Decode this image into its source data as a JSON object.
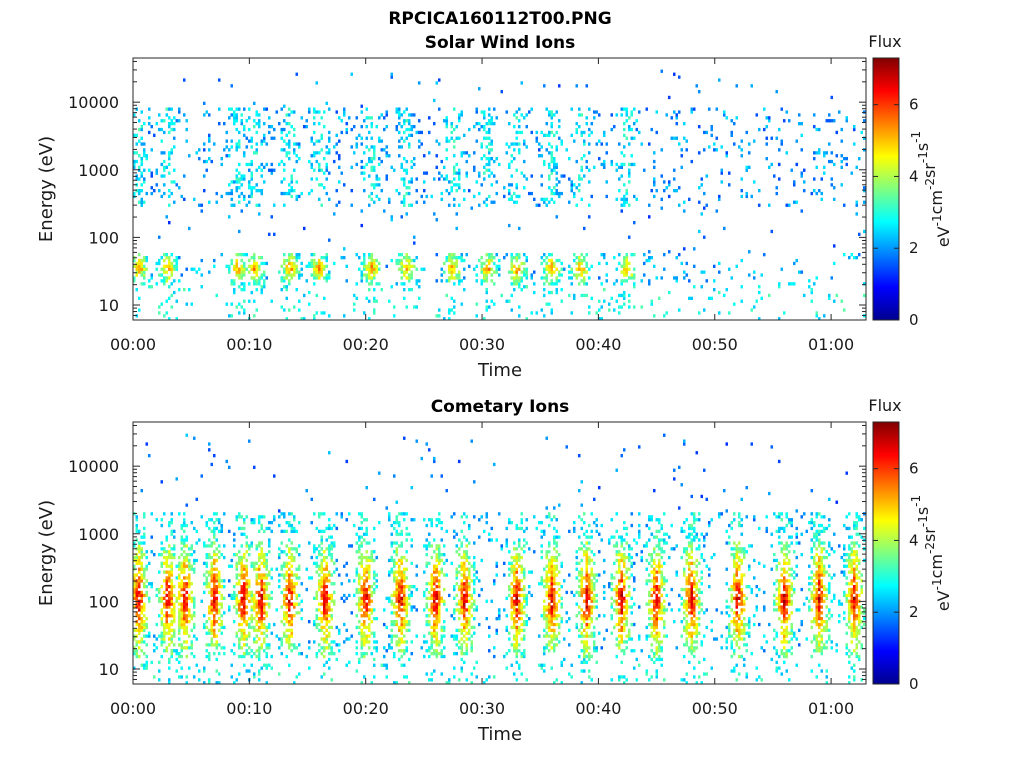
{
  "figure": {
    "title": "RPCICA160112T00.PNG"
  },
  "colormap": "jet",
  "chart_data": [
    {
      "type": "heatmap",
      "title": "Solar Wind Ions",
      "xlabel": "Time",
      "ylabel": "Energy (eV)",
      "x_ticks": [
        "00:00",
        "00:10",
        "00:20",
        "00:30",
        "00:40",
        "00:50",
        "01:00"
      ],
      "x_tick_minutes": [
        0,
        10,
        20,
        30,
        40,
        50,
        60
      ],
      "xlim_minutes": [
        0,
        63
      ],
      "y_scale": "log",
      "ylim": [
        6,
        45000
      ],
      "y_ticks": [
        10,
        100,
        1000,
        10000
      ],
      "y_tick_labels": [
        "10",
        "100",
        "1000",
        "10000"
      ],
      "colorbar": {
        "title": "Flux",
        "unit_parts": [
          "eV",
          "-1",
          "cm",
          "-2",
          "sr",
          "-1",
          "s",
          "-1"
        ],
        "range": [
          0,
          7.3
        ],
        "ticks": [
          0,
          2,
          4,
          6
        ],
        "tick_labels": [
          "0",
          "2",
          "4",
          "6"
        ]
      },
      "bursts_minutes": [
        0.5,
        3,
        9,
        10.5,
        13.5,
        16,
        20.5,
        23.5,
        27.5,
        30.5,
        33,
        36,
        38.5,
        42.5
      ],
      "low_band_energy_eV": [
        20,
        60
      ],
      "low_band_peak_flux": 5.5,
      "high_band_energy_eV": [
        300,
        8000
      ],
      "high_band_flux": 2.0
    },
    {
      "type": "heatmap",
      "title": "Cometary Ions",
      "xlabel": "Time",
      "ylabel": "Energy (eV)",
      "x_ticks": [
        "00:00",
        "00:10",
        "00:20",
        "00:30",
        "00:40",
        "00:50",
        "01:00"
      ],
      "x_tick_minutes": [
        0,
        10,
        20,
        30,
        40,
        50,
        60
      ],
      "xlim_minutes": [
        0,
        63
      ],
      "y_scale": "log",
      "ylim": [
        6,
        45000
      ],
      "y_ticks": [
        10,
        100,
        1000,
        10000
      ],
      "y_tick_labels": [
        "10",
        "100",
        "1000",
        "10000"
      ],
      "colorbar": {
        "title": "Flux",
        "unit_parts": [
          "eV",
          "-1",
          "cm",
          "-2",
          "sr",
          "-1",
          "s",
          "-1"
        ],
        "range": [
          0,
          7.3
        ],
        "ticks": [
          0,
          2,
          4,
          6
        ],
        "tick_labels": [
          "0",
          "2",
          "4",
          "6"
        ]
      },
      "bursts_minutes": [
        0.5,
        3,
        4.5,
        7,
        9.5,
        11,
        13.5,
        16.5,
        20,
        23,
        26,
        28.5,
        33,
        36,
        39,
        42,
        45,
        48,
        52,
        56,
        59,
        62
      ],
      "low_band_energy_eV": [
        15,
        800
      ],
      "low_band_peak_flux": 6.8,
      "high_band_energy_eV": [
        200,
        2000
      ],
      "high_band_flux": 2.2
    }
  ]
}
